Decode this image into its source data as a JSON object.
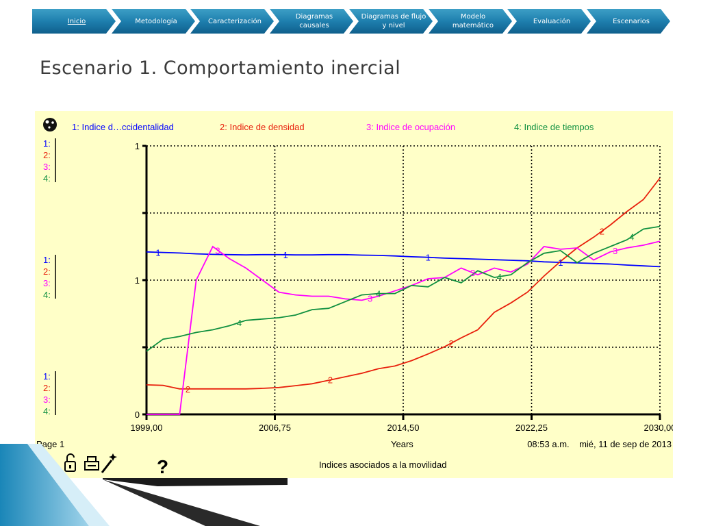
{
  "nav": {
    "tabs": [
      {
        "label": "Inicio",
        "active": true
      },
      {
        "label": "Metodología"
      },
      {
        "label": "Caracterización"
      },
      {
        "label": "Diagramas causales"
      },
      {
        "label": "Diagramas de flujo y nivel"
      },
      {
        "label": "Modelo matemático"
      },
      {
        "label": "Evaluación"
      },
      {
        "label": "Escenarios"
      }
    ]
  },
  "slide": {
    "title": "Escenario 1. Comportamiento inercial"
  },
  "colors": {
    "nav_top": "#3d9fc6",
    "nav_bottom": "#0f5f8c",
    "panel": "#ffffc8",
    "series1": "#0000ff",
    "series2": "#e8200c",
    "series3": "#ff00ff",
    "series4": "#109040"
  },
  "chart_data": {
    "type": "line",
    "title": "Indices asociados a la movilidad",
    "page_label": "Page 1",
    "timestamp": "08:53 a.m.    mié, 11 de sep de 2013",
    "xlabel": "Years",
    "xlim": [
      1999,
      2030
    ],
    "x_ticks": [
      "1999,00",
      "2006,75",
      "2014,50",
      "2022,25",
      "2030,00"
    ],
    "ylim": [
      0,
      1
    ],
    "y_tick_top": "1",
    "y_tick_mid": "1",
    "y_tick_bottom": "0",
    "axis_row_labels": [
      "1:",
      "2:",
      "3:",
      "4:"
    ],
    "grid": true,
    "legend_position": "top",
    "series": [
      {
        "number": "1",
        "name": "Indice d…ccidentalidad",
        "color": "#0000ff",
        "x": [
          1999,
          2000,
          2001,
          2002,
          2003,
          2004,
          2005,
          2006,
          2007,
          2008,
          2009,
          2010,
          2011,
          2012,
          2013,
          2014,
          2015,
          2016,
          2017,
          2018,
          2019,
          2020,
          2021,
          2022,
          2023,
          2024,
          2025,
          2026,
          2027,
          2028,
          2029,
          2030
        ],
        "y": [
          0.605,
          0.603,
          0.601,
          0.598,
          0.596,
          0.595,
          0.594,
          0.595,
          0.595,
          0.594,
          0.594,
          0.595,
          0.595,
          0.593,
          0.592,
          0.59,
          0.587,
          0.585,
          0.582,
          0.58,
          0.578,
          0.576,
          0.574,
          0.572,
          0.568,
          0.566,
          0.564,
          0.562,
          0.56,
          0.556,
          0.553,
          0.55
        ]
      },
      {
        "number": "2",
        "name": "Indice de densidad",
        "color": "#e8200c",
        "x": [
          1999,
          2000,
          2001,
          2002,
          2003,
          2004,
          2005,
          2006,
          2007,
          2008,
          2009,
          2010,
          2011,
          2012,
          2013,
          2014,
          2015,
          2016,
          2017,
          2018,
          2019,
          2020,
          2021,
          2022,
          2023,
          2024,
          2025,
          2026,
          2027,
          2028,
          2029,
          2030
        ],
        "y": [
          0.11,
          0.108,
          0.095,
          0.095,
          0.095,
          0.095,
          0.095,
          0.097,
          0.1,
          0.107,
          0.114,
          0.127,
          0.14,
          0.153,
          0.17,
          0.18,
          0.2,
          0.225,
          0.252,
          0.285,
          0.315,
          0.38,
          0.415,
          0.455,
          0.515,
          0.57,
          0.62,
          0.66,
          0.705,
          0.755,
          0.8,
          0.88
        ]
      },
      {
        "number": "3",
        "name": "Indice de ocupación",
        "color": "#ff00ff",
        "x": [
          1999,
          2000,
          2001,
          2002,
          2003,
          2004,
          2005,
          2006,
          2007,
          2008,
          2009,
          2010,
          2011,
          2012,
          2013,
          2014,
          2015,
          2016,
          2017,
          2018,
          2019,
          2020,
          2021,
          2022,
          2023,
          2024,
          2025,
          2026,
          2027,
          2028,
          2029,
          2030
        ],
        "y": [
          0.0,
          0.0,
          0.0,
          0.5,
          0.625,
          0.58,
          0.545,
          0.5,
          0.455,
          0.445,
          0.44,
          0.44,
          0.43,
          0.425,
          0.44,
          0.46,
          0.48,
          0.505,
          0.51,
          0.545,
          0.52,
          0.545,
          0.53,
          0.56,
          0.625,
          0.615,
          0.62,
          0.575,
          0.605,
          0.62,
          0.63,
          0.645
        ]
      },
      {
        "number": "4",
        "name": "Indice de tiempos",
        "color": "#109040",
        "x": [
          1999,
          2000,
          2001,
          2002,
          2003,
          2004,
          2005,
          2006,
          2007,
          2008,
          2009,
          2010,
          2011,
          2012,
          2013,
          2014,
          2015,
          2016,
          2017,
          2018,
          2019,
          2020,
          2021,
          2022,
          2023,
          2024,
          2025,
          2026,
          2027,
          2028,
          2029,
          2030
        ],
        "y": [
          0.235,
          0.28,
          0.29,
          0.305,
          0.315,
          0.33,
          0.35,
          0.355,
          0.36,
          0.37,
          0.39,
          0.395,
          0.42,
          0.445,
          0.45,
          0.45,
          0.48,
          0.475,
          0.51,
          0.49,
          0.535,
          0.51,
          0.52,
          0.565,
          0.6,
          0.61,
          0.565,
          0.6,
          0.625,
          0.65,
          0.69,
          0.7
        ]
      }
    ],
    "marker_positions": {
      "1": [
        1999.7,
        2007.4,
        2016.0,
        2024.0
      ],
      "2": [
        2001.5,
        2010.1,
        2017.4,
        2026.5
      ],
      "3": [
        2003.3,
        2012.5,
        2018.7,
        2027.3
      ],
      "4": [
        2004.6,
        2013.0,
        2020.3,
        2028.3
      ]
    }
  },
  "toolbar_icons": [
    "lock-icon",
    "printer-icon",
    "magic-wand-icon",
    "help-icon"
  ]
}
